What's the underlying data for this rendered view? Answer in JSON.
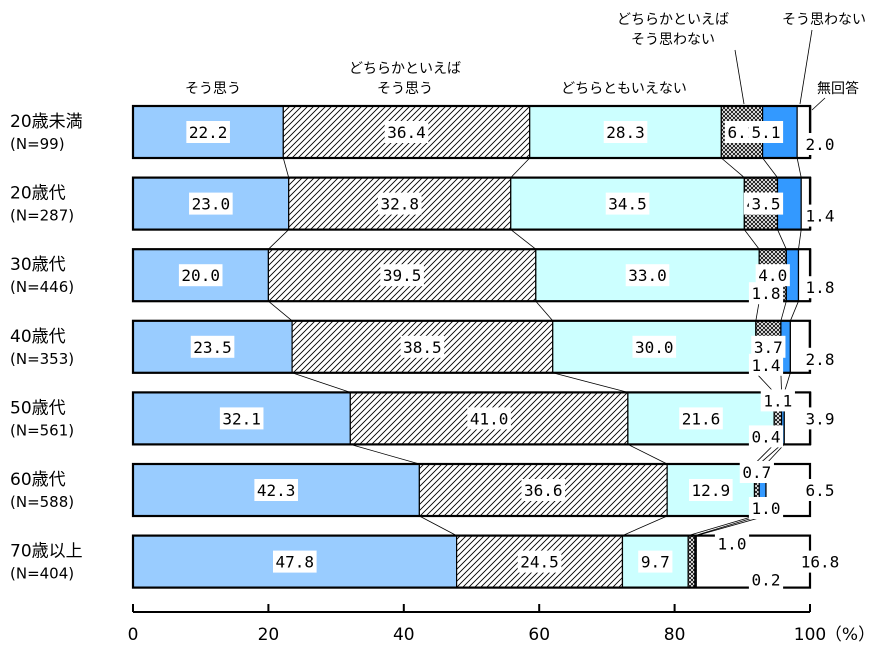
{
  "chart_data": {
    "type": "bar",
    "orientation": "horizontal",
    "stacked": true,
    "xlim": [
      0,
      100
    ],
    "x_ticks": [
      "0",
      "20",
      "40",
      "60",
      "80",
      "100"
    ],
    "x_unit": "（%）",
    "categories": [
      "20歳未満",
      "20歳代",
      "30歳代",
      "40歳代",
      "50歳代",
      "60歳代",
      "70歳以上"
    ],
    "category_counts": [
      "(N=99)",
      "(N=287)",
      "(N=446)",
      "(N=353)",
      "(N=561)",
      "(N=588)",
      "(N=404)"
    ],
    "series": [
      {
        "name": "そう思う",
        "color": "#99ccff",
        "pattern": "solid",
        "values": [
          22.2,
          23.0,
          20.0,
          23.5,
          32.1,
          42.3,
          47.8
        ]
      },
      {
        "name": "どちらかといえば そう思う",
        "color": "#ffffff",
        "pattern": "diagonal-hatch",
        "values": [
          36.4,
          32.8,
          39.5,
          38.5,
          41.0,
          36.6,
          24.5
        ]
      },
      {
        "name": "どちらともいえない",
        "color": "#ccffff",
        "pattern": "solid",
        "values": [
          28.3,
          34.5,
          33.0,
          30.0,
          21.6,
          12.9,
          9.7
        ]
      },
      {
        "name": "どちらかといえば そう思わない",
        "color": "#ffffff",
        "pattern": "crosshatch",
        "values": [
          6.1,
          4.9,
          4.0,
          3.7,
          1.1,
          0.7,
          1.0
        ]
      },
      {
        "name": "そう思わない",
        "color": "#3399ff",
        "pattern": "solid",
        "values": [
          5.1,
          3.5,
          1.8,
          1.4,
          0.4,
          1.0,
          0.2
        ]
      },
      {
        "name": "無回答",
        "color": "#ffffff",
        "pattern": "solid",
        "values": [
          2.0,
          1.4,
          1.8,
          2.8,
          3.9,
          6.5,
          16.8
        ]
      }
    ],
    "legend_lines": {
      "s0": [
        "そう思う"
      ],
      "s1": [
        "どちらかといえば",
        "そう思う"
      ],
      "s2": [
        "どちらともいえない"
      ],
      "s3": [
        "どちらかといえば",
        "そう思わない"
      ],
      "s4": [
        "そう思わない"
      ],
      "s5": [
        "無回答"
      ]
    },
    "data_labels": [
      [
        "22.2",
        "36.4",
        "28.3",
        "6.1",
        "5.1",
        "2.0"
      ],
      [
        "23.0",
        "32.8",
        "34.5",
        "4.9",
        "3.5",
        "1.4"
      ],
      [
        "20.0",
        "39.5",
        "33.0",
        "4.0",
        "1.8",
        "1.8"
      ],
      [
        "23.5",
        "38.5",
        "30.0",
        "3.7",
        "1.4",
        "2.8"
      ],
      [
        "32.1",
        "41.0",
        "21.6",
        "1.1",
        "0.4",
        "3.9"
      ],
      [
        "42.3",
        "36.6",
        "12.9",
        "0.7",
        "1.0",
        "6.5"
      ],
      [
        "47.8",
        "24.5",
        "9.7",
        "1.0",
        "0.2",
        "16.8"
      ]
    ]
  }
}
